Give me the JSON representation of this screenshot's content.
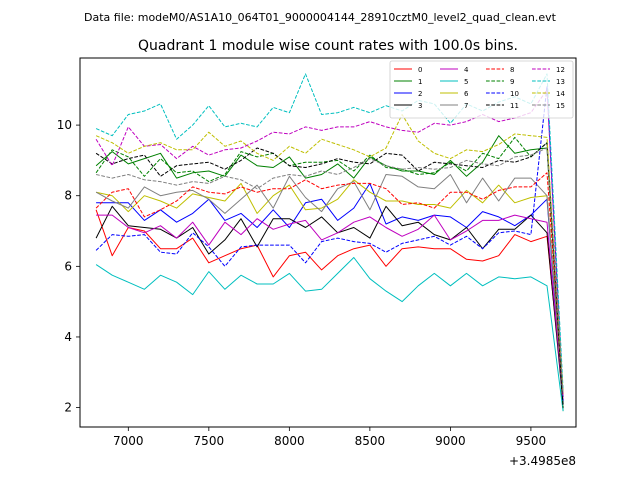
{
  "suptitle": "Data file: modeM0/AS1A10_064T01_9000004144_28910cztM0_level2_quad_clean.evt",
  "chart_data": {
    "type": "line",
    "title": "Quadrant 1 module wise count rates with 100.0s bins.",
    "xlabel": "",
    "ylabel": "",
    "x_offset_label": "+3.4985e8",
    "xlim": [
      6700,
      9780
    ],
    "ylim": [
      1.45,
      11.9
    ],
    "xticks": [
      7000,
      7500,
      8000,
      8500,
      9000,
      9500
    ],
    "yticks": [
      2,
      4,
      6,
      8,
      10
    ],
    "x": [
      6800,
      6900,
      7000,
      7100,
      7200,
      7300,
      7400,
      7500,
      7600,
      7700,
      7800,
      7900,
      8000,
      8100,
      8200,
      8300,
      8400,
      8500,
      8600,
      8700,
      8800,
      8900,
      9000,
      9100,
      9200,
      9300,
      9400,
      9500,
      9600,
      9700
    ],
    "legend_location": "top-right",
    "series": [
      {
        "name": "0",
        "color": "#ff0000",
        "dash": "solid",
        "values": [
          7.6,
          6.3,
          7.1,
          7.0,
          6.5,
          6.5,
          6.8,
          6.1,
          6.3,
          6.5,
          6.6,
          5.7,
          6.3,
          6.4,
          5.9,
          6.3,
          6.5,
          6.6,
          6.0,
          6.5,
          6.55,
          6.5,
          6.5,
          6.2,
          6.15,
          6.3,
          6.9,
          6.7,
          6.85,
          2.3
        ]
      },
      {
        "name": "1",
        "color": "#008000",
        "dash": "solid",
        "values": [
          8.85,
          9.25,
          8.9,
          9.05,
          9.2,
          8.5,
          8.65,
          8.7,
          8.55,
          9.15,
          8.85,
          8.8,
          9.1,
          8.5,
          8.6,
          8.9,
          8.5,
          9.1,
          8.85,
          8.7,
          8.7,
          8.6,
          9.0,
          8.55,
          8.95,
          9.7,
          9.2,
          9.3,
          9.35,
          1.9
        ]
      },
      {
        "name": "2",
        "color": "#0000ff",
        "dash": "solid",
        "values": [
          7.8,
          7.8,
          7.8,
          7.3,
          7.6,
          7.25,
          7.5,
          7.9,
          7.3,
          7.5,
          7.1,
          7.6,
          7.1,
          7.8,
          7.9,
          7.3,
          7.65,
          8.35,
          7.2,
          7.4,
          7.3,
          7.45,
          7.4,
          7.1,
          7.55,
          7.4,
          7.15,
          7.45,
          7.9,
          2.1
        ]
      },
      {
        "name": "3",
        "color": "#000000",
        "dash": "solid",
        "values": [
          6.8,
          7.7,
          7.15,
          7.1,
          7.05,
          6.8,
          7.1,
          6.35,
          6.75,
          7.35,
          6.55,
          7.35,
          7.35,
          7.1,
          7.4,
          6.95,
          7.1,
          6.8,
          7.7,
          7.15,
          7.25,
          6.9,
          6.75,
          7.1,
          6.5,
          7.05,
          7.05,
          7.45,
          6.95,
          2.1
        ]
      },
      {
        "name": "4",
        "color": "#bf00bf",
        "dash": "solid",
        "values": [
          7.45,
          7.45,
          7.1,
          6.95,
          7.15,
          6.8,
          7.25,
          6.6,
          7.25,
          6.9,
          7.35,
          7.05,
          7.2,
          7.3,
          6.75,
          6.95,
          7.25,
          7.4,
          7.1,
          6.85,
          7.05,
          7.45,
          6.75,
          7.0,
          7.3,
          7.3,
          7.45,
          7.35,
          7.25,
          2.2
        ]
      },
      {
        "name": "5",
        "color": "#00bfbf",
        "dash": "solid",
        "values": [
          6.05,
          5.75,
          5.55,
          5.35,
          5.75,
          5.55,
          5.2,
          5.85,
          5.35,
          5.75,
          5.5,
          5.5,
          5.8,
          5.3,
          5.35,
          5.8,
          6.25,
          5.65,
          5.3,
          5.0,
          5.45,
          5.8,
          5.45,
          5.8,
          5.45,
          5.7,
          5.65,
          5.7,
          5.45,
          1.9
        ]
      },
      {
        "name": "6",
        "color": "#bfbf00",
        "dash": "solid",
        "values": [
          8.1,
          8.0,
          7.55,
          8.0,
          7.85,
          7.65,
          8.05,
          7.95,
          7.85,
          8.35,
          7.5,
          8.0,
          8.3,
          7.6,
          7.65,
          7.9,
          8.45,
          8.1,
          7.85,
          7.85,
          7.75,
          7.75,
          7.65,
          8.15,
          7.8,
          8.3,
          7.8,
          7.95,
          8.0,
          2.3
        ]
      },
      {
        "name": "7",
        "color": "#808080",
        "dash": "solid",
        "values": [
          8.1,
          7.85,
          7.65,
          8.25,
          8.0,
          8.1,
          8.15,
          7.9,
          7.5,
          7.9,
          8.3,
          7.65,
          8.55,
          7.95,
          7.55,
          8.2,
          8.4,
          7.6,
          8.6,
          8.55,
          8.25,
          8.2,
          8.6,
          7.8,
          8.5,
          7.85,
          8.5,
          8.5,
          8.0,
          2.4
        ]
      },
      {
        "name": "8",
        "color": "#ff0000",
        "dash": "dashed",
        "values": [
          7.65,
          8.1,
          8.2,
          7.4,
          7.6,
          7.85,
          8.25,
          8.1,
          8.05,
          8.25,
          8.1,
          8.2,
          8.2,
          8.45,
          8.2,
          8.3,
          8.35,
          8.35,
          8.2,
          7.75,
          7.8,
          7.65,
          8.1,
          8.1,
          7.9,
          8.15,
          8.25,
          8.25,
          8.65,
          2.4
        ]
      },
      {
        "name": "9",
        "color": "#008000",
        "dash": "dashed",
        "values": [
          8.65,
          9.3,
          9.1,
          8.55,
          9.05,
          8.65,
          8.7,
          8.4,
          8.6,
          9.25,
          9.1,
          9.2,
          8.85,
          8.95,
          8.95,
          9.0,
          8.7,
          9.15,
          8.8,
          8.75,
          8.6,
          8.65,
          8.95,
          8.7,
          9.2,
          9.05,
          9.65,
          9.1,
          9.5,
          2.0
        ]
      },
      {
        "name": "10",
        "color": "#0000ff",
        "dash": "dashed",
        "values": [
          6.45,
          6.9,
          6.85,
          6.9,
          6.4,
          6.35,
          6.95,
          6.55,
          6.0,
          6.55,
          6.6,
          6.6,
          6.6,
          6.1,
          6.7,
          6.8,
          6.7,
          6.65,
          6.4,
          6.65,
          6.75,
          6.85,
          6.6,
          6.85,
          6.5,
          6.95,
          7.0,
          6.9,
          11.1,
          2.2
        ]
      },
      {
        "name": "11",
        "color": "#000000",
        "dash": "dashed",
        "values": [
          9.2,
          8.9,
          9.05,
          9.15,
          8.55,
          8.85,
          8.9,
          8.95,
          8.75,
          9.0,
          9.35,
          9.2,
          8.85,
          8.8,
          8.9,
          9.05,
          8.95,
          8.9,
          9.2,
          9.15,
          8.7,
          8.95,
          8.9,
          8.85,
          8.8,
          9.0,
          8.95,
          9.1,
          9.5,
          2.0
        ]
      },
      {
        "name": "12",
        "color": "#bf00bf",
        "dash": "dashed",
        "values": [
          9.6,
          8.85,
          9.95,
          9.4,
          9.45,
          9.05,
          9.4,
          9.15,
          9.3,
          9.35,
          9.55,
          9.8,
          9.75,
          9.95,
          9.85,
          9.95,
          9.95,
          10.1,
          9.95,
          9.85,
          9.8,
          10.05,
          10.0,
          10.1,
          10.3,
          10.1,
          10.2,
          10.35,
          11.0,
          2.3
        ]
      },
      {
        "name": "13",
        "color": "#00bfbf",
        "dash": "dashed",
        "values": [
          9.9,
          9.7,
          10.3,
          10.4,
          10.6,
          9.6,
          10.0,
          10.55,
          9.95,
          10.05,
          9.95,
          10.5,
          10.35,
          11.45,
          10.3,
          10.35,
          10.5,
          10.35,
          10.55,
          10.4,
          10.7,
          10.6,
          10.05,
          10.6,
          10.4,
          10.65,
          10.8,
          10.6,
          11.45,
          2.5
        ]
      },
      {
        "name": "14",
        "color": "#bfbf00",
        "dash": "dashed",
        "values": [
          9.7,
          9.5,
          9.2,
          9.4,
          9.5,
          9.3,
          9.3,
          9.8,
          9.4,
          9.55,
          9.2,
          9.0,
          9.4,
          9.2,
          9.6,
          9.45,
          9.3,
          9.1,
          9.35,
          10.3,
          9.55,
          9.2,
          9.05,
          9.3,
          9.25,
          9.45,
          9.75,
          9.7,
          9.65,
          2.4
        ]
      },
      {
        "name": "15",
        "color": "#808080",
        "dash": "dashed",
        "values": [
          8.6,
          8.5,
          8.6,
          8.45,
          8.4,
          8.3,
          8.4,
          8.35,
          8.55,
          8.45,
          8.2,
          8.5,
          8.6,
          8.55,
          8.7,
          8.6,
          8.8,
          9.05,
          8.85,
          8.75,
          8.8,
          8.75,
          8.8,
          9.0,
          8.9,
          8.85,
          9.1,
          9.15,
          9.35,
          2.4
        ]
      }
    ]
  }
}
